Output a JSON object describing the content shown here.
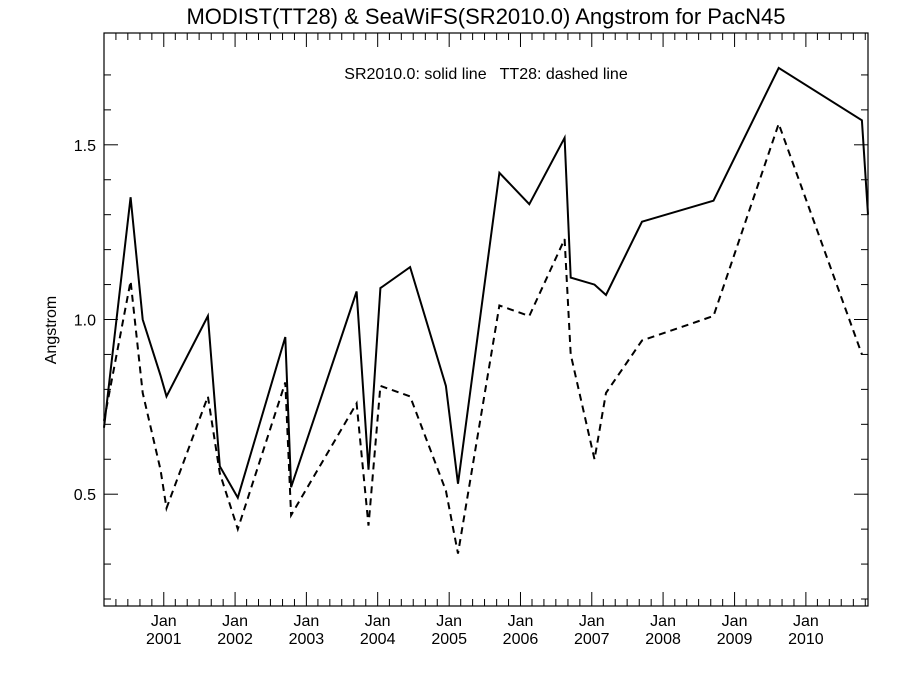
{
  "chart_data": {
    "type": "line",
    "title": "MODIST(TT28) & SeaWiFS(SR2010.0)  Angstrom for PacN45",
    "annotation": "SR2010.0: solid line   TT28: dashed line",
    "ylabel": "Angstrom",
    "xlabel": "",
    "xlim": [
      "2000-03-01",
      "2010-11-15"
    ],
    "ylim": [
      0.18,
      1.82
    ],
    "yticks": [
      {
        "value": 0.5,
        "label": "0.5"
      },
      {
        "value": 1.0,
        "label": "1.0"
      },
      {
        "value": 1.5,
        "label": "1.5"
      }
    ],
    "xticks": [
      {
        "date": "2001-01-01",
        "month": "Jan",
        "year": "2001"
      },
      {
        "date": "2002-01-01",
        "month": "Jan",
        "year": "2002"
      },
      {
        "date": "2003-01-01",
        "month": "Jan",
        "year": "2003"
      },
      {
        "date": "2004-01-01",
        "month": "Jan",
        "year": "2004"
      },
      {
        "date": "2005-01-01",
        "month": "Jan",
        "year": "2005"
      },
      {
        "date": "2006-01-01",
        "month": "Jan",
        "year": "2006"
      },
      {
        "date": "2007-01-01",
        "month": "Jan",
        "year": "2007"
      },
      {
        "date": "2008-01-01",
        "month": "Jan",
        "year": "2008"
      },
      {
        "date": "2009-01-01",
        "month": "Jan",
        "year": "2009"
      },
      {
        "date": "2010-01-01",
        "month": "Jan",
        "year": "2010"
      }
    ],
    "grid": false,
    "series": [
      {
        "name": "SR2010.0",
        "style": "solid",
        "color": "#000000",
        "x": [
          "2000-03-01",
          "2000-07-15",
          "2000-09-15",
          "2000-12-15",
          "2001-01-15",
          "2001-08-15",
          "2001-10-15",
          "2002-01-15",
          "2002-09-15",
          "2002-10-15",
          "2003-09-15",
          "2003-11-15",
          "2004-01-15",
          "2004-06-15",
          "2004-12-15",
          "2005-02-15",
          "2005-09-15",
          "2006-02-15",
          "2006-08-15",
          "2006-09-15",
          "2007-01-15",
          "2007-03-15",
          "2007-09-15",
          "2008-09-15",
          "2009-08-15",
          "2010-10-15",
          "2010-11-15"
        ],
        "y": [
          0.69,
          1.35,
          1.0,
          0.84,
          0.78,
          1.01,
          0.58,
          0.49,
          0.95,
          0.52,
          1.08,
          0.57,
          1.09,
          1.15,
          0.81,
          0.53,
          1.42,
          1.33,
          1.52,
          1.12,
          1.1,
          1.07,
          1.28,
          1.34,
          1.72,
          1.57,
          1.3
        ]
      },
      {
        "name": "TT28",
        "style": "dashed",
        "color": "#000000",
        "x": [
          "2000-03-01",
          "2000-07-15",
          "2000-09-15",
          "2000-12-15",
          "2001-01-15",
          "2001-08-15",
          "2001-10-15",
          "2002-01-15",
          "2002-09-15",
          "2002-10-15",
          "2003-09-15",
          "2003-11-15",
          "2004-01-15",
          "2004-06-15",
          "2004-12-15",
          "2005-02-15",
          "2005-09-15",
          "2006-02-15",
          "2006-08-15",
          "2006-09-15",
          "2007-01-15",
          "2007-03-15",
          "2007-09-15",
          "2008-09-15",
          "2009-08-15",
          "2010-10-15"
        ],
        "y": [
          0.71,
          1.11,
          0.79,
          0.57,
          0.46,
          0.78,
          0.56,
          0.4,
          0.82,
          0.44,
          0.76,
          0.41,
          0.81,
          0.78,
          0.51,
          0.33,
          1.04,
          1.01,
          1.23,
          0.9,
          0.6,
          0.79,
          0.94,
          1.01,
          1.56,
          0.9
        ]
      }
    ]
  }
}
